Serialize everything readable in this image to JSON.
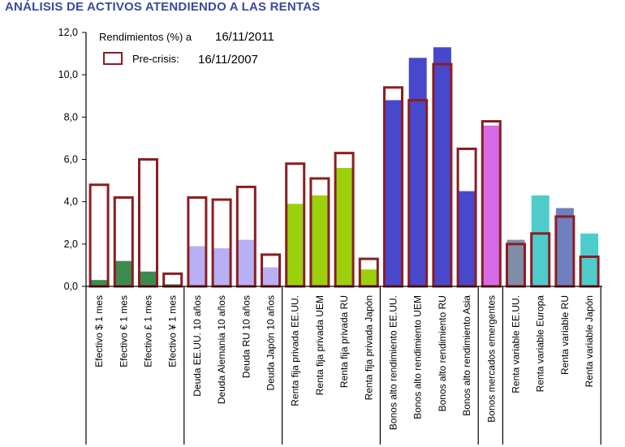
{
  "title": "ANÁLISIS DE ACTIVOS ATENDIENDO A LAS RENTAS",
  "chart_data": {
    "type": "bar",
    "legend": {
      "current_label": "Rendimientos (%) a",
      "current_date": "16/11/2011",
      "precrisis_label": "Pre-crisis:",
      "precrisis_date": "16/11/2007"
    },
    "ylim": [
      0,
      12
    ],
    "yticks": [
      "0,0",
      "2,0",
      "4,0",
      "6,0",
      "8,0",
      "10,0",
      "12,0"
    ],
    "ytick_values": [
      0,
      2,
      4,
      6,
      8,
      10,
      12
    ],
    "groups": [
      {
        "name": "Efectivo",
        "size": 4
      },
      {
        "name": "Deuda",
        "size": 4
      },
      {
        "name": "Renta fija privada",
        "size": 4
      },
      {
        "name": "Bonos alto rendimiento",
        "size": 4
      },
      {
        "name": "Bonos mercados emergentes",
        "size": 1
      },
      {
        "name": "Renta variable",
        "size": 4
      }
    ],
    "categories": [
      "Efectivo $ 1 mes",
      "Efectivo € 1 mes",
      "Efectivo £ 1 mes",
      "Efectivo ¥ 1 mes",
      "Deuda EE.UU. 10 años",
      "Deuda Alemania 10 años",
      "Deuda RU 10 años",
      "Deuda Japón 10 años",
      "Renta fija privada EE.UU.",
      "Renta fija privada UEM",
      "Renta fija privada RU",
      "Renta fija privada Japón",
      "Bonos alto rendimiento EE.UU.",
      "Bonos alto rendimiento UEM",
      "Bonos alto rendimiento RU",
      "Bonos alto rendimiento Asia",
      "Bonos mercados emergentes",
      "Renta variable EE.UU.",
      "Renta variable Europa",
      "Renta variable RU",
      "Renta variable Japón"
    ],
    "series": [
      {
        "name": "Rendimientos (%) a 16/11/2011",
        "values": [
          0.3,
          1.2,
          0.7,
          0.1,
          1.9,
          1.8,
          2.2,
          0.9,
          3.9,
          4.3,
          5.6,
          0.8,
          8.8,
          10.8,
          11.3,
          4.5,
          7.6,
          2.2,
          4.3,
          3.7,
          2.5
        ],
        "colors": [
          "#3d8a4e",
          "#3d8a4e",
          "#3d8a4e",
          "#3d8a4e",
          "#b8b0f4",
          "#b8b0f4",
          "#b8b0f4",
          "#b8b0f4",
          "#9ad10c",
          "#9ad10c",
          "#9ad10c",
          "#9ad10c",
          "#4848cc",
          "#4848cc",
          "#4848cc",
          "#4848cc",
          "#d66ae6",
          "#7f8da8",
          "#4ecccc",
          "#6f7fbf",
          "#4ecccc"
        ]
      },
      {
        "name": "Pre-crisis: 16/11/2007",
        "values": [
          4.8,
          4.2,
          6.0,
          0.6,
          4.2,
          4.1,
          4.7,
          1.5,
          5.8,
          5.1,
          6.3,
          1.3,
          9.4,
          8.8,
          10.5,
          6.5,
          7.8,
          2.0,
          2.5,
          3.3,
          1.4
        ],
        "color": "#8b1d22"
      }
    ],
    "xlabel": "",
    "ylabel": ""
  }
}
